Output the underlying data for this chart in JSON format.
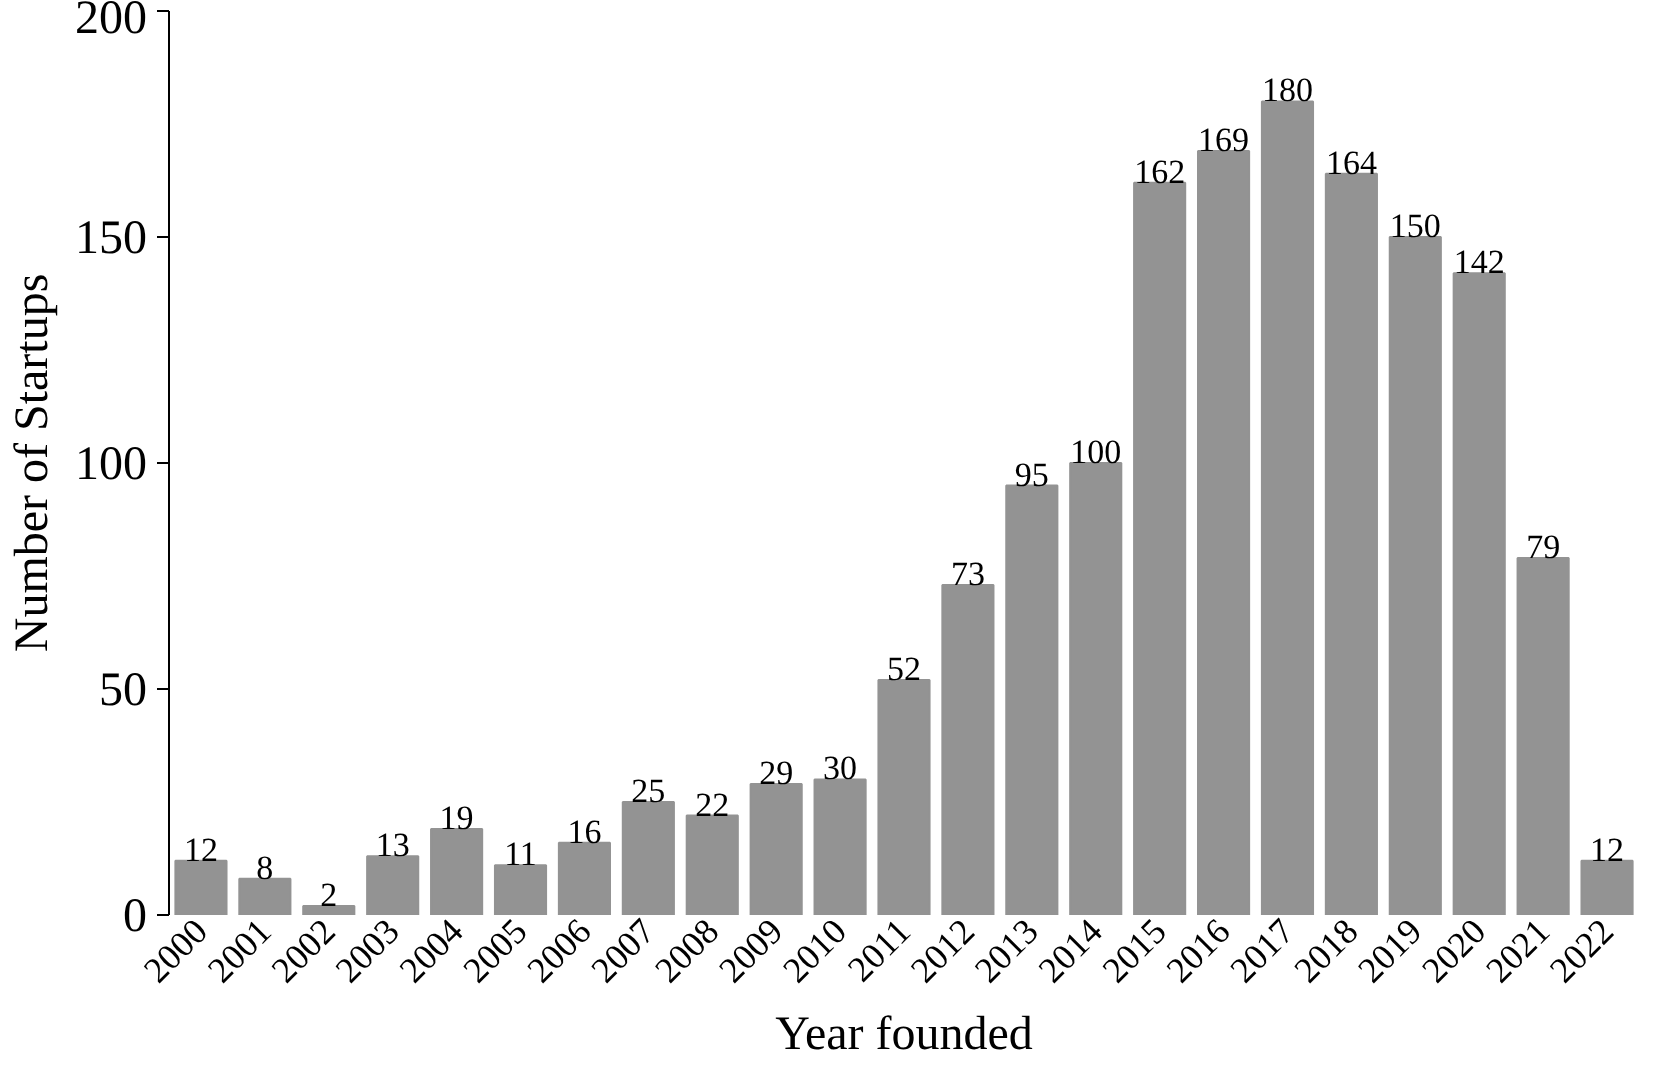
{
  "chart_data": {
    "type": "bar",
    "xlabel": "Year founded",
    "ylabel": "Number of Startups",
    "categories": [
      "2000",
      "2001",
      "2002",
      "2003",
      "2004",
      "2005",
      "2006",
      "2007",
      "2008",
      "2009",
      "2010",
      "2011",
      "2012",
      "2013",
      "2014",
      "2015",
      "2016",
      "2017",
      "2018",
      "2019",
      "2020",
      "2021",
      "2022"
    ],
    "values": [
      12,
      8,
      2,
      13,
      19,
      11,
      16,
      25,
      22,
      29,
      30,
      52,
      73,
      95,
      100,
      162,
      169,
      180,
      164,
      150,
      142,
      79,
      12
    ],
    "color": "#939393",
    "ylim": [
      0,
      200
    ],
    "yticks": [
      0,
      50,
      100,
      150,
      200
    ],
    "grid": false,
    "data_labels": true
  }
}
